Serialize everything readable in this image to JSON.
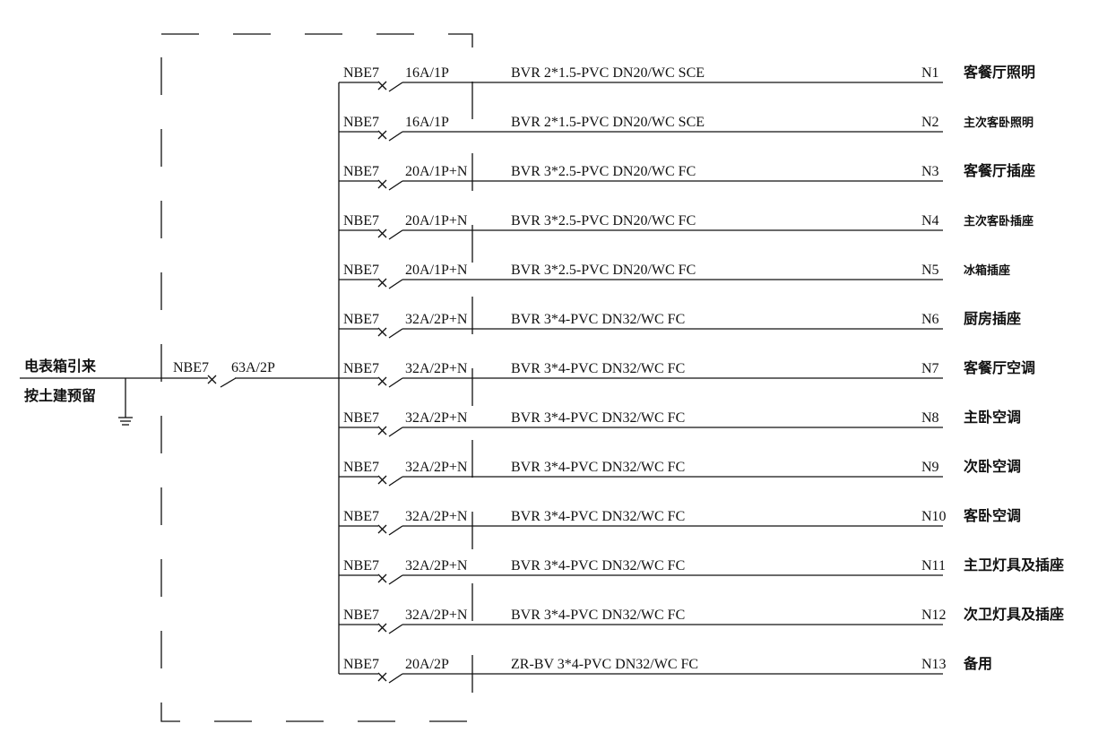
{
  "incoming": {
    "label_top": "电表箱引来",
    "label_bottom": "按土建预留",
    "breaker_model": "NBE7",
    "breaker_rating": "63A/2P"
  },
  "circuits": [
    {
      "breaker": "NBE7",
      "rating": "16A/1P",
      "cable": "BVR 2*1.5-PVC DN20/WC SCE",
      "id": "N1",
      "name": "客餐厅照明"
    },
    {
      "breaker": "NBE7",
      "rating": "16A/1P",
      "cable": "BVR 2*1.5-PVC DN20/WC SCE",
      "id": "N2",
      "name": "主次客卧照明"
    },
    {
      "breaker": "NBE7",
      "rating": "20A/1P+N",
      "cable": "BVR 3*2.5-PVC DN20/WC FC",
      "id": "N3",
      "name": "客餐厅插座"
    },
    {
      "breaker": "NBE7",
      "rating": "20A/1P+N",
      "cable": "BVR 3*2.5-PVC DN20/WC FC",
      "id": "N4",
      "name": "主次客卧插座"
    },
    {
      "breaker": "NBE7",
      "rating": "20A/1P+N",
      "cable": "BVR 3*2.5-PVC DN20/WC FC",
      "id": "N5",
      "name": "冰箱插座"
    },
    {
      "breaker": "NBE7",
      "rating": "32A/2P+N",
      "cable": "BVR 3*4-PVC DN32/WC FC",
      "id": "N6",
      "name": "厨房插座"
    },
    {
      "breaker": "NBE7",
      "rating": "32A/2P+N",
      "cable": "BVR 3*4-PVC DN32/WC FC",
      "id": "N7",
      "name": "客餐厅空调"
    },
    {
      "breaker": "NBE7",
      "rating": "32A/2P+N",
      "cable": "BVR 3*4-PVC DN32/WC FC",
      "id": "N8",
      "name": "主卧空调"
    },
    {
      "breaker": "NBE7",
      "rating": "32A/2P+N",
      "cable": "BVR 3*4-PVC DN32/WC FC",
      "id": "N9",
      "name": "次卧空调"
    },
    {
      "breaker": "NBE7",
      "rating": "32A/2P+N",
      "cable": "BVR 3*4-PVC DN32/WC FC",
      "id": "N10",
      "name": "客卧空调"
    },
    {
      "breaker": "NBE7",
      "rating": "32A/2P+N",
      "cable": "BVR 3*4-PVC DN32/WC FC",
      "id": "N11",
      "name": "主卫灯具及插座"
    },
    {
      "breaker": "NBE7",
      "rating": "32A/2P+N",
      "cable": "BVR 3*4-PVC DN32/WC FC",
      "id": "N12",
      "name": "次卫灯具及插座"
    },
    {
      "breaker": "NBE7",
      "rating": "20A/2P",
      "cable": "ZR-BV 3*4-PVC DN32/WC FC",
      "id": "N13",
      "name": "备用"
    }
  ]
}
